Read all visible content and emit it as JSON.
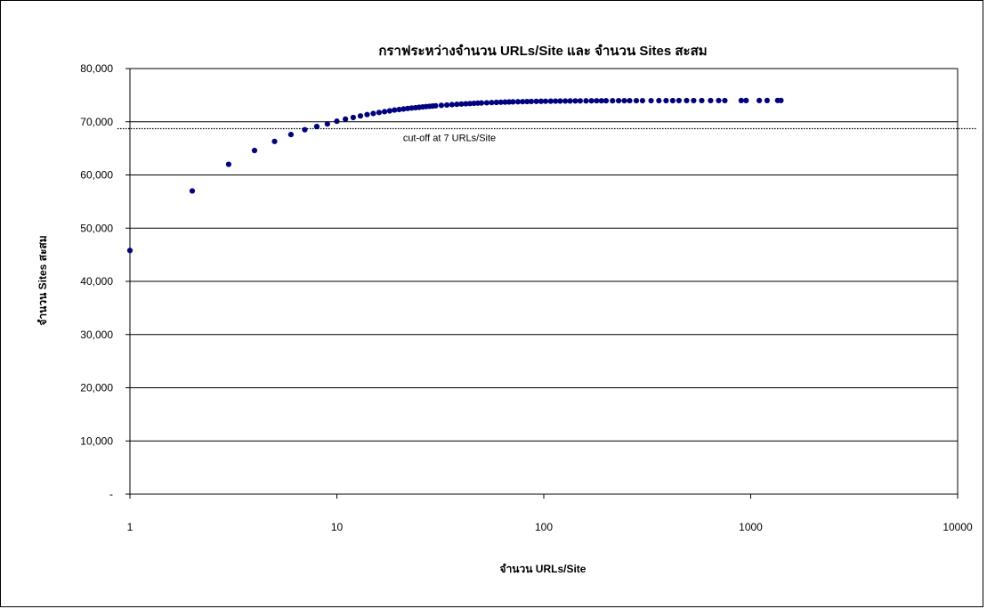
{
  "chart_data": {
    "type": "scatter",
    "title": "กราฟระหว่างจำนวน URLs/Site และ จำนวน Sites สะสม",
    "xlabel": "จำนวน URLs/Site",
    "ylabel": "จำนวน Sites สะสม",
    "x_scale": "log",
    "xlim": [
      1,
      10000
    ],
    "ylim": [
      0,
      80000
    ],
    "x_tick_labels": [
      "1",
      "10",
      "100",
      "1000",
      "10000"
    ],
    "x_tick_values": [
      1,
      10,
      100,
      1000,
      10000
    ],
    "y_tick_labels": [
      "-",
      "10,000",
      "20,000",
      "30,000",
      "40,000",
      "50,000",
      "60,000",
      "70,000",
      "80,000"
    ],
    "y_tick_values": [
      0,
      10000,
      20000,
      30000,
      40000,
      50000,
      60000,
      70000,
      80000
    ],
    "grid": "horizontal",
    "marker_color": "#000080",
    "reference_line": {
      "y": 68700,
      "label": "cut-off at 7 URLs/Site",
      "style": "dotted"
    },
    "series": [
      {
        "points": [
          [
            1,
            45800
          ],
          [
            2,
            57000
          ],
          [
            3,
            62000
          ],
          [
            4,
            64600
          ],
          [
            5,
            66300
          ],
          [
            6,
            67600
          ],
          [
            7,
            68500
          ],
          [
            8,
            69100
          ],
          [
            9,
            69600
          ],
          [
            10,
            70100
          ],
          [
            11,
            70500
          ],
          [
            12,
            70800
          ],
          [
            13,
            71100
          ],
          [
            14,
            71350
          ],
          [
            15,
            71550
          ],
          [
            16,
            71750
          ],
          [
            17,
            71900
          ],
          [
            18,
            72050
          ],
          [
            19,
            72200
          ],
          [
            20,
            72300
          ],
          [
            21,
            72400
          ],
          [
            22,
            72500
          ],
          [
            23,
            72580
          ],
          [
            24,
            72650
          ],
          [
            25,
            72720
          ],
          [
            26,
            72790
          ],
          [
            27,
            72850
          ],
          [
            28,
            72900
          ],
          [
            29,
            72950
          ],
          [
            30,
            73000
          ],
          [
            32,
            73080
          ],
          [
            34,
            73150
          ],
          [
            36,
            73220
          ],
          [
            38,
            73280
          ],
          [
            40,
            73330
          ],
          [
            42,
            73380
          ],
          [
            44,
            73420
          ],
          [
            46,
            73460
          ],
          [
            48,
            73500
          ],
          [
            50,
            73530
          ],
          [
            53,
            73570
          ],
          [
            56,
            73610
          ],
          [
            59,
            73640
          ],
          [
            62,
            73670
          ],
          [
            65,
            73700
          ],
          [
            68,
            73720
          ],
          [
            71,
            73740
          ],
          [
            75,
            73760
          ],
          [
            79,
            73780
          ],
          [
            83,
            73800
          ],
          [
            87,
            73815
          ],
          [
            92,
            73830
          ],
          [
            97,
            73845
          ],
          [
            102,
            73858
          ],
          [
            108,
            73870
          ],
          [
            114,
            73880
          ],
          [
            120,
            73890
          ],
          [
            127,
            73900
          ],
          [
            134,
            73908
          ],
          [
            142,
            73915
          ],
          [
            150,
            73922
          ],
          [
            160,
            73928
          ],
          [
            170,
            73934
          ],
          [
            180,
            73940
          ],
          [
            190,
            73944
          ],
          [
            200,
            73948
          ],
          [
            215,
            73952
          ],
          [
            230,
            73955
          ],
          [
            245,
            73958
          ],
          [
            260,
            73961
          ],
          [
            280,
            73964
          ],
          [
            300,
            73966
          ],
          [
            330,
            73968
          ],
          [
            360,
            73970
          ],
          [
            390,
            73972
          ],
          [
            420,
            73974
          ],
          [
            450,
            73976
          ],
          [
            490,
            73978
          ],
          [
            530,
            73980
          ],
          [
            580,
            73982
          ],
          [
            640,
            73984
          ],
          [
            700,
            73986
          ],
          [
            750,
            73988
          ],
          [
            900,
            73990
          ],
          [
            950,
            73992
          ],
          [
            1100,
            73994
          ],
          [
            1200,
            73996
          ],
          [
            1350,
            73998
          ],
          [
            1400,
            74000
          ]
        ]
      }
    ]
  }
}
